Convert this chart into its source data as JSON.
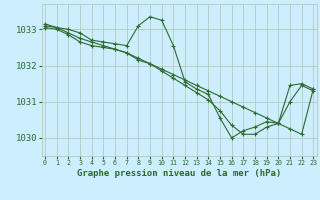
{
  "background_color": "#cceeff",
  "plot_bg_color": "#cceeff",
  "grid_color": "#b0c4b0",
  "line_color": "#2d6a2d",
  "marker_color": "#2d6a2d",
  "xlabel": "Graphe pression niveau de la mer (hPa)",
  "ylim": [
    1029.5,
    1033.7
  ],
  "yticks": [
    1030,
    1031,
    1032,
    1033
  ],
  "xlim": [
    -0.3,
    23.3
  ],
  "xticks": [
    0,
    1,
    2,
    3,
    4,
    5,
    6,
    7,
    8,
    9,
    10,
    11,
    12,
    13,
    14,
    15,
    16,
    17,
    18,
    19,
    20,
    21,
    22,
    23
  ],
  "series": [
    {
      "x": [
        0,
        1,
        2,
        3,
        4,
        5,
        6,
        7,
        8,
        9,
        10,
        11,
        12,
        13,
        14,
        15,
        16,
        17,
        18,
        19,
        20,
        21,
        22,
        23
      ],
      "y": [
        1033.1,
        1033.05,
        1033.0,
        1032.9,
        1032.7,
        1032.65,
        1032.6,
        1032.55,
        1033.1,
        1033.35,
        1033.25,
        1032.55,
        1031.55,
        1031.35,
        1031.2,
        1030.55,
        1030.0,
        1030.2,
        1030.3,
        1030.45,
        1030.4,
        1031.45,
        1031.5,
        1031.35
      ]
    },
    {
      "x": [
        0,
        1,
        2,
        3,
        4,
        5,
        6,
        7,
        8,
        9,
        10,
        11,
        12,
        13,
        14,
        15,
        16,
        17,
        18,
        19,
        20,
        21,
        22,
        23
      ],
      "y": [
        1033.15,
        1033.05,
        1032.9,
        1032.75,
        1032.65,
        1032.55,
        1032.45,
        1032.35,
        1032.2,
        1032.05,
        1031.9,
        1031.75,
        1031.6,
        1031.45,
        1031.3,
        1031.15,
        1031.0,
        1030.85,
        1030.7,
        1030.55,
        1030.4,
        1030.25,
        1030.1,
        1031.35
      ]
    },
    {
      "x": [
        0,
        1,
        2,
        3,
        4,
        5,
        6,
        7,
        8,
        9,
        10,
        11,
        12,
        13,
        14,
        15,
        16,
        17,
        18,
        19,
        20,
        21,
        22,
        23
      ],
      "y": [
        1033.05,
        1033.0,
        1032.85,
        1032.65,
        1032.55,
        1032.5,
        1032.45,
        1032.35,
        1032.15,
        1032.05,
        1031.85,
        1031.65,
        1031.45,
        1031.25,
        1031.05,
        1030.75,
        1030.35,
        1030.1,
        1030.1,
        1030.3,
        1030.4,
        1031.0,
        1031.45,
        1031.3
      ]
    }
  ]
}
